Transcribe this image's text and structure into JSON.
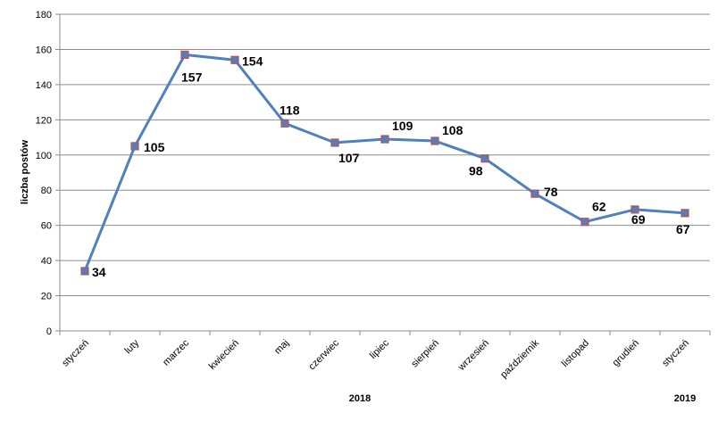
{
  "chart_data": {
    "type": "line",
    "ylabel": "liczba postów",
    "ylim": [
      0,
      180
    ],
    "yticks": [
      0,
      20,
      40,
      60,
      80,
      100,
      120,
      140,
      160,
      180
    ],
    "grid": true,
    "categories": [
      "styczeń",
      "luty",
      "marzec",
      "kwiecień",
      "maj",
      "czerwiec",
      "lipiec",
      "sierpień",
      "wrzesień",
      "październik",
      "listopad",
      "grudień",
      "styczeń"
    ],
    "year_groups": [
      {
        "label": "2018",
        "start": 0,
        "end": 11
      },
      {
        "label": "2019",
        "start": 12,
        "end": 12
      }
    ],
    "series": [
      {
        "values": [
          34,
          105,
          157,
          154,
          118,
          107,
          109,
          108,
          98,
          78,
          62,
          69,
          67
        ],
        "labels": [
          "34",
          "105",
          "157",
          "154",
          "118",
          "107",
          "109",
          "108",
          "98",
          "78",
          "62",
          "69",
          "67"
        ],
        "line_color": "#4F81BD",
        "marker_border": "#C0504D"
      }
    ]
  }
}
